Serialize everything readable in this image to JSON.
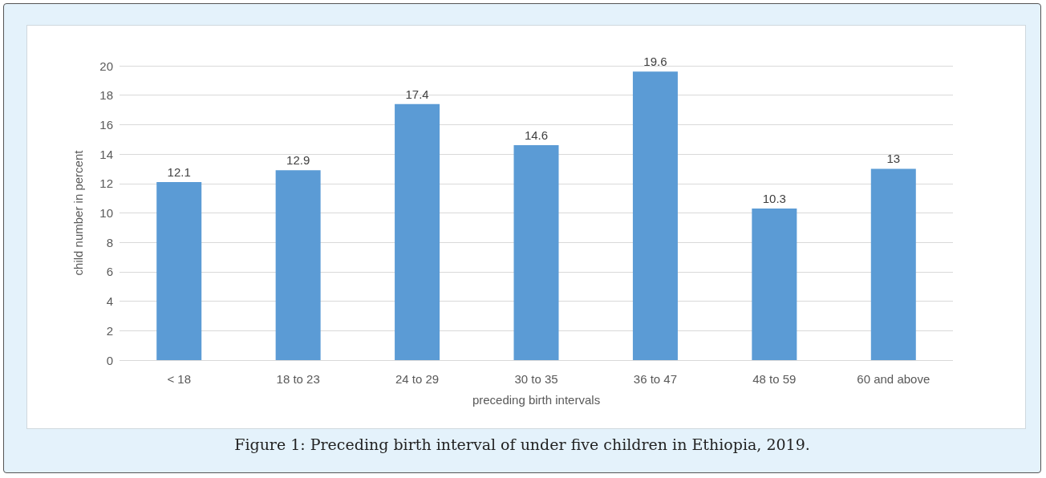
{
  "chart_data": {
    "type": "bar",
    "xlabel": "preceding birth intervals",
    "ylabel": "child number in percent",
    "categories": [
      "< 18",
      "18 to 23",
      "24 to 29",
      "30 to 35",
      "36 to 47",
      "48 to 59",
      "60 and above"
    ],
    "values": [
      12.1,
      12.9,
      17.4,
      14.6,
      19.6,
      10.3,
      13
    ],
    "color": "#5b9bd5",
    "ylim": [
      0,
      20
    ],
    "yticks": [
      0,
      2,
      4,
      6,
      8,
      10,
      12,
      14,
      16,
      18,
      20
    ],
    "grid": "y",
    "data_labels": true,
    "annotations": [
      "Figure 1: Preceding birth interval of under five children in Ethiopia, 2019."
    ]
  }
}
